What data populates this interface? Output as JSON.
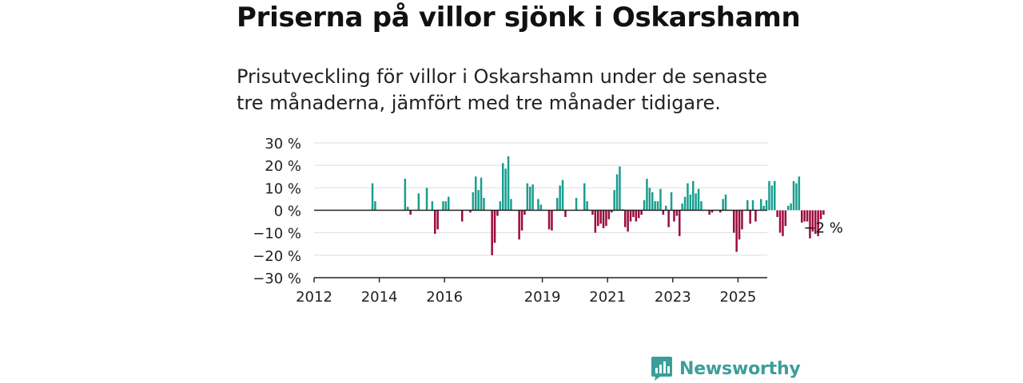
{
  "header": {
    "title": "Priserna på villor sjönk i Oskarshamn",
    "subtitle": "Prisutveckling för villor i Oskarshamn under de senaste tre månaderna, jämfört med tre månader tidigare."
  },
  "brand": {
    "name": "Newsworthy",
    "color": "#3c9e9a",
    "icon": "bar-chart-speech-bubble-icon"
  },
  "colors": {
    "positive": "#1a9e8f",
    "negative": "#9c0b3e",
    "grid": "#dddddd",
    "axis": "#222222"
  },
  "chart_data": {
    "type": "bar",
    "x_unit": "month",
    "x_start": "2012-01",
    "ylim": [
      -30,
      30
    ],
    "y_ticks": [
      30,
      20,
      10,
      0,
      -10,
      -20,
      -30
    ],
    "y_tick_labels": [
      "30 %",
      "20 %",
      "10 %",
      "0 %",
      "−10 %",
      "−20 %",
      "−30 %"
    ],
    "x_ticks": [
      "2012",
      "2014",
      "2016",
      "2019",
      "2021",
      "2023",
      "2025"
    ],
    "grid": true,
    "end_label": "−2 %",
    "values": [
      null,
      null,
      null,
      null,
      null,
      null,
      null,
      null,
      null,
      null,
      null,
      null,
      null,
      null,
      null,
      null,
      null,
      null,
      null,
      null,
      null,
      12,
      4,
      null,
      null,
      null,
      null,
      null,
      null,
      null,
      null,
      null,
      null,
      14,
      1.5,
      -2,
      null,
      null,
      7.5,
      null,
      null,
      10,
      null,
      4,
      -10.5,
      -8.5,
      null,
      4,
      4,
      6,
      null,
      null,
      null,
      null,
      -5,
      null,
      null,
      -1,
      8,
      15,
      9,
      14.5,
      5.5,
      null,
      null,
      -20,
      -14.5,
      -2.5,
      4,
      21,
      18.5,
      24,
      5,
      null,
      null,
      -13,
      -9,
      -2,
      12,
      10.5,
      11.5,
      null,
      5,
      2.5,
      null,
      null,
      -8.5,
      -9,
      null,
      5.5,
      11,
      13.5,
      -3,
      null,
      null,
      null,
      5.5,
      null,
      null,
      12,
      4,
      null,
      -2,
      -10,
      -7,
      -6,
      -8,
      -7,
      -4,
      -1,
      9,
      16,
      19.5,
      0.5,
      -7.5,
      -9.5,
      -5,
      -3,
      -5,
      -3.5,
      -2,
      4.5,
      14,
      10,
      8,
      4,
      4,
      9.5,
      -2,
      2,
      -7.5,
      8,
      -5,
      -2.5,
      -11.5,
      3,
      6,
      12,
      7,
      13,
      7.5,
      9.5,
      4,
      null,
      null,
      -2,
      -1,
      null,
      null,
      -1,
      5,
      7,
      null,
      null,
      -10,
      -18.5,
      -13,
      -8.5,
      null,
      4.5,
      -6,
      4.5,
      -5,
      null,
      5,
      2,
      4.5,
      13,
      11,
      13,
      -3,
      -10,
      -11.5,
      -7,
      2,
      3,
      13,
      12,
      15,
      -5.5,
      -5,
      -5,
      -12.5,
      -9.5,
      -10.5,
      -11.5,
      -4,
      -2,
      null,
      null,
      null,
      null
    ]
  }
}
